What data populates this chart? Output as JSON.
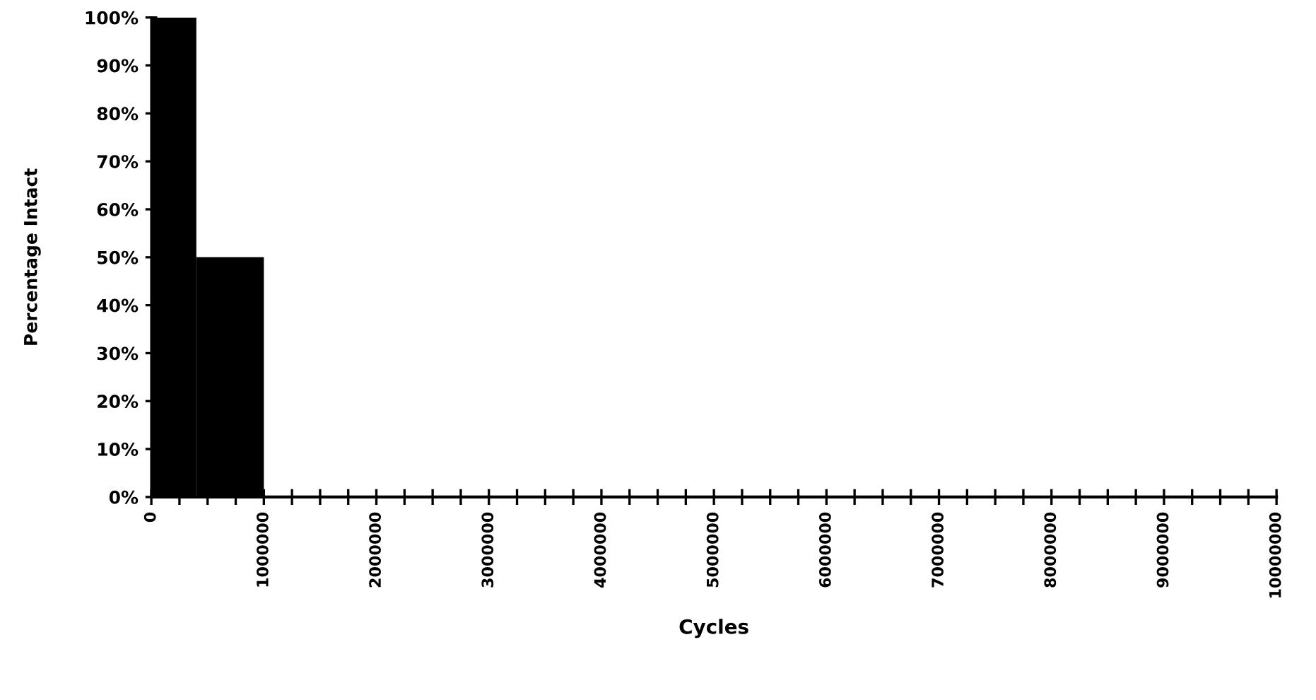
{
  "chart_data": {
    "type": "histogram",
    "xlabel": "Cycles",
    "ylabel": "Percentage Intact",
    "bins": [
      0,
      400000,
      1000000
    ],
    "values": [
      100,
      50
    ],
    "color": "#000000",
    "xlim": [
      0,
      10000000
    ],
    "ylim": [
      0,
      100
    ],
    "xticks": [
      0,
      {
        "value": 250000,
        "label": null
      },
      {
        "value": 500000,
        "label": null
      },
      {
        "value": 750000,
        "label": null
      },
      1000000,
      {
        "value": 1250000,
        "label": null
      },
      {
        "value": 1500000,
        "label": null
      },
      {
        "value": 1750000,
        "label": null
      },
      2000000,
      {
        "value": 2250000,
        "label": null
      },
      {
        "value": 2500000,
        "label": null
      },
      {
        "value": 2750000,
        "label": null
      },
      3000000,
      {
        "value": 3250000,
        "label": null
      },
      {
        "value": 3500000,
        "label": null
      },
      {
        "value": 3750000,
        "label": null
      },
      4000000,
      {
        "value": 4250000,
        "label": null
      },
      {
        "value": 4500000,
        "label": null
      },
      {
        "value": 4750000,
        "label": null
      },
      5000000,
      {
        "value": 5250000,
        "label": null
      },
      {
        "value": 5500000,
        "label": null
      },
      {
        "value": 5750000,
        "label": null
      },
      6000000,
      {
        "value": 6250000,
        "label": null
      },
      {
        "value": 6500000,
        "label": null
      },
      {
        "value": 6750000,
        "label": null
      },
      7000000,
      {
        "value": 7250000,
        "label": null
      },
      {
        "value": 7500000,
        "label": null
      },
      {
        "value": 7750000,
        "label": null
      },
      8000000,
      {
        "value": 8250000,
        "label": null
      },
      {
        "value": 8500000,
        "label": null
      },
      {
        "value": 8750000,
        "label": null
      },
      9000000,
      {
        "value": 9250000,
        "label": null
      },
      {
        "value": 9500000,
        "label": null
      },
      {
        "value": 9750000,
        "label": null
      },
      10000000
    ],
    "yticks": [
      {
        "value": 0,
        "label": "0%"
      },
      {
        "value": 10,
        "label": "10%"
      },
      {
        "value": 20,
        "label": "20%"
      },
      {
        "value": 30,
        "label": "30%"
      },
      {
        "value": 40,
        "label": "40%"
      },
      {
        "value": 50,
        "label": "50%"
      },
      {
        "value": 60,
        "label": "60%"
      },
      {
        "value": 70,
        "label": "70%"
      },
      {
        "value": 80,
        "label": "80%"
      },
      {
        "value": 90,
        "label": "90%"
      },
      {
        "value": 100,
        "label": "100%"
      }
    ],
    "grid": false,
    "legend": false
  }
}
